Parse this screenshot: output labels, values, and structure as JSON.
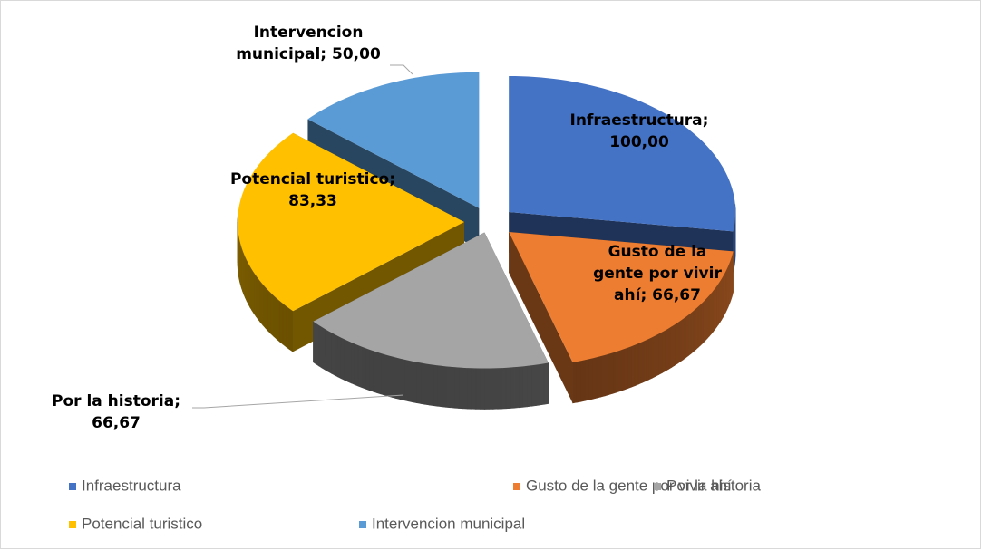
{
  "chart_data": {
    "type": "pie",
    "categories": [
      "Infraestructura",
      "Gusto de la gente por vivir ahí",
      "Por la historia",
      "Potencial turistico",
      "Intervencion municipal"
    ],
    "values": [
      100,
      66.67,
      66.67,
      83.33,
      50
    ],
    "value_labels": [
      "Infraestructura; 100,00",
      "Gusto de la gente por vivir ahí; 66,67",
      "Por la historia; 66,67",
      "Potencial turistico; 83,33",
      "Intervencion municipal; 50,00"
    ],
    "colors": [
      "#4472c4",
      "#ed7d31",
      "#a5a5a5",
      "#ffc000",
      "#5b9bd5"
    ],
    "legend": "bottom"
  }
}
